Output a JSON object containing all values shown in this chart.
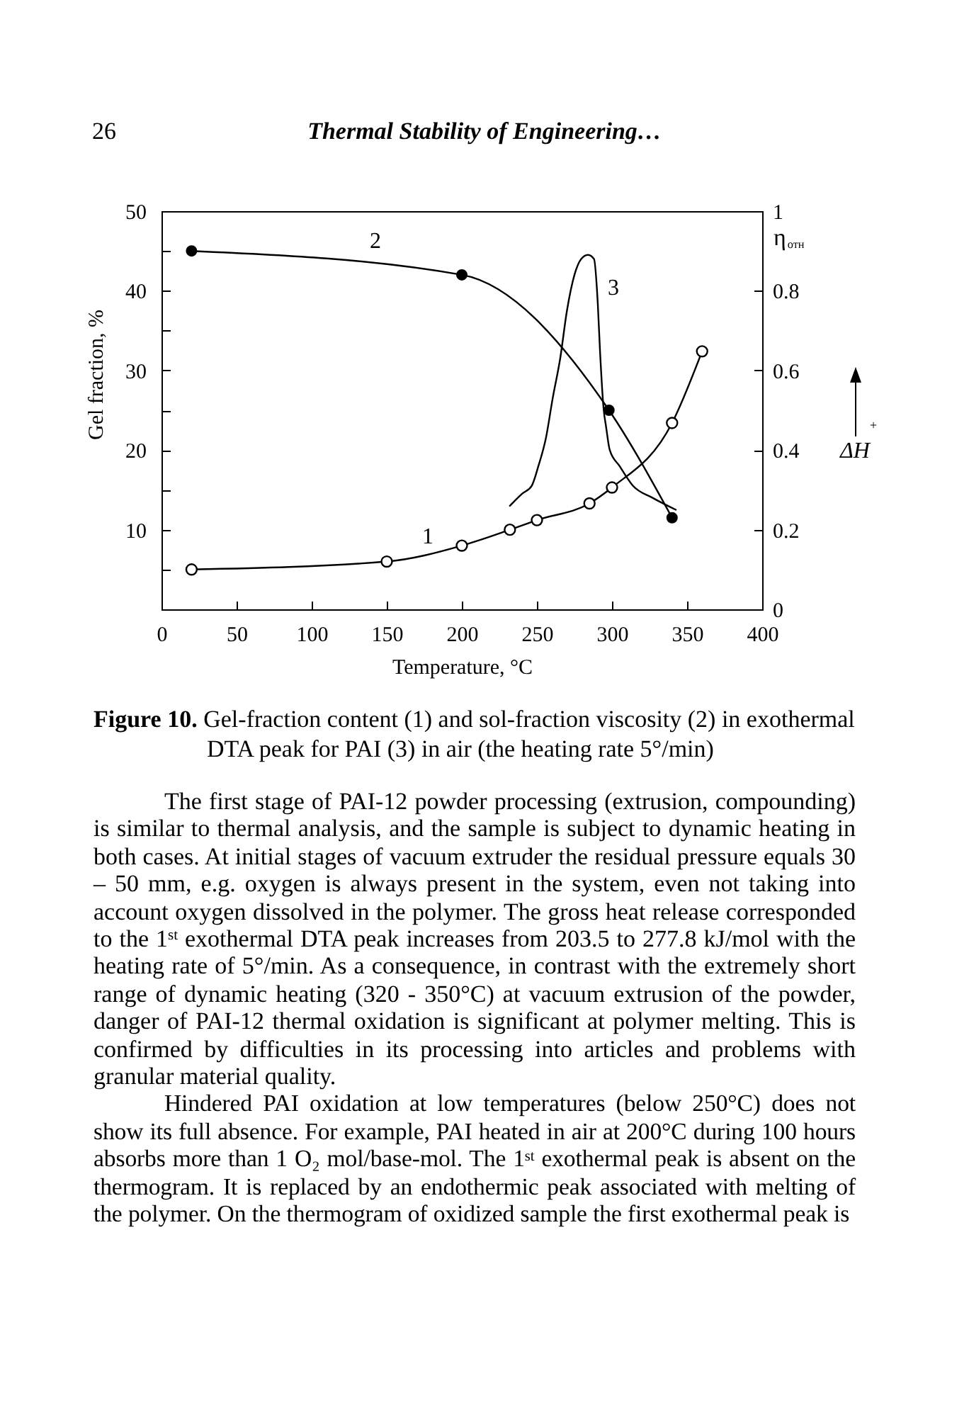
{
  "chart_data": {
    "type": "line",
    "title": "Thermal Stability of Engineering…",
    "xlabel": "Temperature, °C",
    "ylabel": "Gel fraction, %",
    "y2label": "η$_{отн}$",
    "xlim": [
      0,
      400
    ],
    "xticks": [
      0,
      50,
      100,
      150,
      200,
      250,
      300,
      350,
      400
    ],
    "ylim": [
      0,
      50
    ],
    "yticks": [
      {
        "value": 5,
        "label": null
      },
      10,
      {
        "value": 15,
        "label": null
      },
      20,
      {
        "value": 25,
        "label": null
      },
      30,
      {
        "value": 35,
        "label": null
      },
      40,
      {
        "value": 45,
        "label": null
      },
      50
    ],
    "y2lim": [
      0,
      1
    ],
    "y2ticks": [
      0,
      0.2,
      0.4,
      0.6,
      0.8,
      1
    ],
    "series": [
      {
        "name": "1",
        "color": "#000000",
        "marker": "circle",
        "x": [
          20,
          150,
          200,
          232,
          250,
          285,
          300,
          340,
          360
        ],
        "values": [
          5,
          6,
          8,
          10,
          11.2,
          13.3,
          15.3,
          23.4,
          32.4
        ]
      },
      {
        "name": "2",
        "color": "#000000",
        "marker": "circle",
        "axis": "y2",
        "x": [
          20,
          200,
          298,
          340
        ],
        "values": [
          0.9,
          0.84,
          0.5,
          0.23
        ]
      },
      {
        "name": "3",
        "color": "#000000",
        "axis": "y2",
        "x": [
          232,
          240,
          246.5,
          251,
          256,
          260.5,
          265.5,
          270,
          275,
          279.5,
          284,
          288,
          290.5,
          292,
          294.5,
          296,
          298.5,
          305,
          314,
          327,
          342.5
        ],
        "values": [
          0.26,
          0.29,
          0.31,
          0.36,
          0.43,
          0.53,
          0.63,
          0.75,
          0.84,
          0.88,
          0.89,
          0.88,
          0.77,
          0.65,
          0.5,
          0.46,
          0.4,
          0.36,
          0.31,
          0.28,
          0.25
        ]
      }
    ],
    "annotations": [
      "26",
      "Figure 10.",
      "Gel-fraction content (1) and sol-fraction viscosity (2) in exothermal DTA peak for PAI (3) in air (the heating rate 5°/min)",
      "The first stage of PAI-12 powder processing (extrusion, compounding) is similar to thermal analysis, and the sample is subject to dynamic heating in both cases. At initial stages of vacuum extruder the residual pressure equals 30 – 50 mm, e.g. oxygen is always present in the system, even not taking into account oxygen dissolved in the polymer. The gross heat release corresponded to the 1$^{st}$ exothermal DTA peak increases from 203.5 to 277.8 kJ/mol with the heating rate of 5°/min. As a consequence, in contrast with the extremely short range of dynamic heating (320 - 350°C) at vacuum extrusion of the powder, danger of PAI-12 thermal oxidation is significant at polymer melting. This is confirmed by difficulties in its processing into articles and problems with granular material quality.",
      "Hindered PAI oxidation at low temperatures (below 250°C) does not show its full absence. For example, PAI heated in air at 200°C during 100 hours absorbs more than 1 O₂ mol/base-mol. The 1$^{st}$ exothermal peak is absent on the thermogram. It is replaced by an endothermic peak associated with melting of the polymer. On the thermogram of oxidized sample the first exothermal peak is",
      "ΔH",
      "+"
    ]
  }
}
